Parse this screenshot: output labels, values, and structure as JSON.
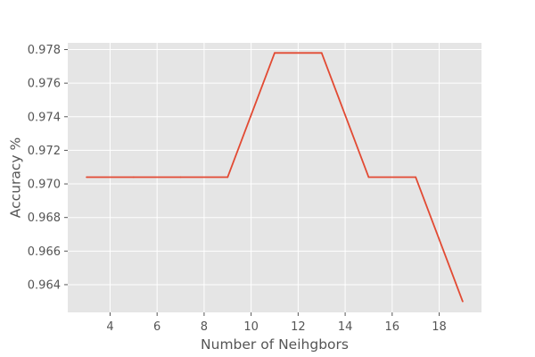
{
  "chart_data": {
    "type": "line",
    "title": "",
    "xlabel": "Number of Neihgbors",
    "ylabel": "Accuracy %",
    "xlim": [
      2.2,
      19.8
    ],
    "ylim": [
      0.96235,
      0.9784
    ],
    "xticks": [
      4,
      6,
      8,
      10,
      12,
      14,
      16,
      18
    ],
    "yticks": [
      0.964,
      0.966,
      0.968,
      0.97,
      0.972,
      0.974,
      0.976,
      0.978
    ],
    "yticks_format": 3,
    "grid": true,
    "style": "ggplot",
    "colors": {
      "plot_background": "#e5e5e5",
      "grid": "#ffffff",
      "line": "#e24a33",
      "text": "#555555"
    },
    "series": [
      {
        "x": [
          3,
          5,
          7,
          9,
          11,
          13,
          15,
          17,
          19
        ],
        "y": [
          0.9704,
          0.9704,
          0.9704,
          0.9704,
          0.9778,
          0.9778,
          0.9704,
          0.9704,
          0.963
        ]
      }
    ]
  }
}
